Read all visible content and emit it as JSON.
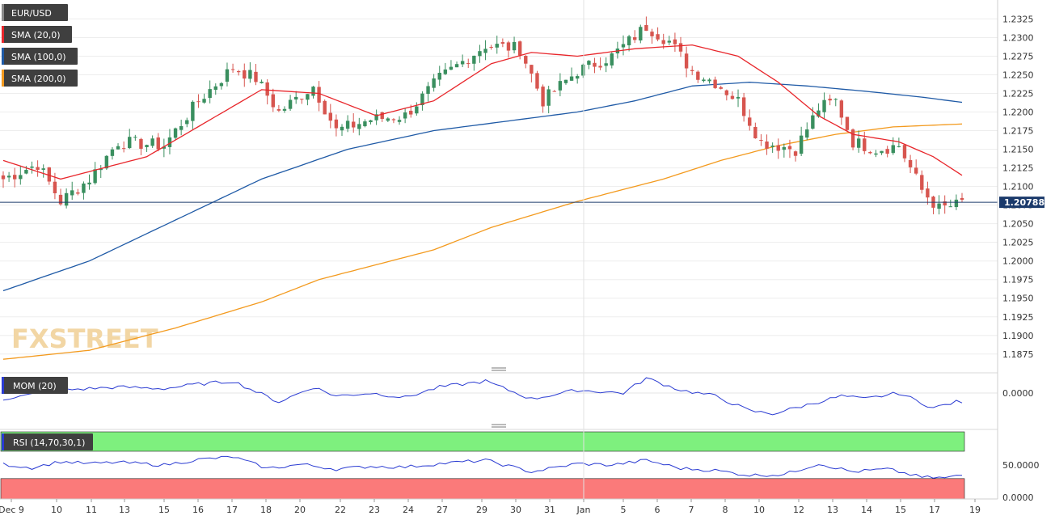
{
  "indicators": {
    "symbol": "EUR/USD",
    "sma20": "SMA (20,0)",
    "sma100": "SMA (100,0)",
    "sma200": "SMA (200,0)",
    "mom": "MOM (20)",
    "rsi": "RSI (14,70,30,1)"
  },
  "colors": {
    "candle_up": "#3a8f5f",
    "candle_down": "#d7554f",
    "sma20": "#e8262b",
    "sma100": "#1f5aa6",
    "sma200": "#f39a1e",
    "mom": "#2a3bd2",
    "rsi": "#2a3bd2",
    "rsi_overbought": "#7ef07e",
    "rsi_oversold": "#fb7a7a",
    "price_line": "#1b3a6b"
  },
  "watermark": "FXSTREET",
  "chart_data": [
    {
      "type": "candlestick",
      "title": "EUR/USD",
      "ylim": [
        1.1865,
        1.2345
      ],
      "yticks": [
        "1.2325",
        "1.2300",
        "1.2275",
        "1.2250",
        "1.2225",
        "1.2200",
        "1.2175",
        "1.2150",
        "1.2125",
        "1.2100",
        "1.2075",
        "1.2050",
        "1.2025",
        "1.2000",
        "1.1975",
        "1.1950",
        "1.1925",
        "1.1900",
        "1.1875"
      ],
      "current_price": 1.20788,
      "current_price_label": "1.20788",
      "x_labels": [
        "Dec 9",
        "10",
        "11",
        "13",
        "15",
        "16",
        "17",
        "18",
        "20",
        "22",
        "23",
        "24",
        "27",
        "29",
        "30",
        "31",
        "Jan",
        "5",
        "6",
        "7",
        "8",
        "10",
        "12",
        "13",
        "14",
        "15",
        "17",
        "19"
      ],
      "close_anchors": [
        [
          0,
          1.211
        ],
        [
          6,
          1.213
        ],
        [
          10,
          1.208
        ],
        [
          15,
          1.211
        ],
        [
          20,
          1.216
        ],
        [
          28,
          1.2155
        ],
        [
          34,
          1.2215
        ],
        [
          40,
          1.226
        ],
        [
          44,
          1.2245
        ],
        [
          48,
          1.22
        ],
        [
          54,
          1.2235
        ],
        [
          58,
          1.2175
        ],
        [
          64,
          1.219
        ],
        [
          70,
          1.2195
        ],
        [
          76,
          1.2245
        ],
        [
          84,
          1.229
        ],
        [
          90,
          1.2285
        ],
        [
          94,
          1.2215
        ],
        [
          100,
          1.2255
        ],
        [
          106,
          1.2275
        ],
        [
          112,
          1.2315
        ],
        [
          116,
          1.2295
        ],
        [
          120,
          1.2255
        ],
        [
          124,
          1.224
        ],
        [
          128,
          1.2215
        ],
        [
          132,
          1.216
        ],
        [
          138,
          1.215
        ],
        [
          142,
          1.2205
        ],
        [
          145,
          1.2215
        ],
        [
          148,
          1.216
        ],
        [
          152,
          1.215
        ],
        [
          156,
          1.2155
        ],
        [
          160,
          1.2095
        ],
        [
          163,
          1.207
        ],
        [
          166,
          1.2075
        ],
        [
          167,
          1.2079
        ]
      ],
      "series": [
        {
          "name": "SMA (20,0)",
          "points": [
            [
              0,
              1.2135
            ],
            [
              10,
              1.211
            ],
            [
              25,
              1.214
            ],
            [
              35,
              1.2185
            ],
            [
              45,
              1.223
            ],
            [
              55,
              1.2225
            ],
            [
              65,
              1.2195
            ],
            [
              75,
              1.2215
            ],
            [
              85,
              1.2265
            ],
            [
              92,
              1.228
            ],
            [
              100,
              1.2275
            ],
            [
              110,
              1.2285
            ],
            [
              120,
              1.229
            ],
            [
              128,
              1.2275
            ],
            [
              135,
              1.224
            ],
            [
              142,
              1.2195
            ],
            [
              148,
              1.217
            ],
            [
              156,
              1.216
            ],
            [
              162,
              1.214
            ],
            [
              167,
              1.2115
            ]
          ]
        },
        {
          "name": "SMA (100,0)",
          "points": [
            [
              0,
              1.196
            ],
            [
              15,
              1.2
            ],
            [
              30,
              1.2055
            ],
            [
              45,
              1.211
            ],
            [
              60,
              1.215
            ],
            [
              75,
              1.2175
            ],
            [
              90,
              1.219
            ],
            [
              100,
              1.22
            ],
            [
              110,
              1.2215
            ],
            [
              120,
              1.2235
            ],
            [
              130,
              1.224
            ],
            [
              140,
              1.2235
            ],
            [
              150,
              1.2228
            ],
            [
              160,
              1.222
            ],
            [
              167,
              1.2213
            ]
          ]
        },
        {
          "name": "SMA (200,0)",
          "points": [
            [
              0,
              1.1868
            ],
            [
              15,
              1.188
            ],
            [
              30,
              1.191
            ],
            [
              45,
              1.1945
            ],
            [
              55,
              1.1975
            ],
            [
              65,
              1.1995
            ],
            [
              75,
              1.2015
            ],
            [
              85,
              1.2045
            ],
            [
              100,
              1.208
            ],
            [
              115,
              1.211
            ],
            [
              125,
              1.2135
            ],
            [
              135,
              1.2155
            ],
            [
              145,
              1.217
            ],
            [
              155,
              1.218
            ],
            [
              167,
              1.2184
            ]
          ]
        }
      ]
    },
    {
      "type": "line",
      "title": "MOM (20)",
      "ytick": "0.0000",
      "points": [
        [
          0,
          -0.002
        ],
        [
          10,
          0.001
        ],
        [
          20,
          0.002
        ],
        [
          28,
          0.0015
        ],
        [
          34,
          0.003
        ],
        [
          40,
          0.004
        ],
        [
          48,
          -0.003
        ],
        [
          54,
          0.002
        ],
        [
          58,
          -0.001
        ],
        [
          64,
          0.0
        ],
        [
          70,
          -0.0015
        ],
        [
          76,
          0.002
        ],
        [
          84,
          0.004
        ],
        [
          92,
          -0.002
        ],
        [
          100,
          0.001
        ],
        [
          108,
          0.0
        ],
        [
          112,
          0.005
        ],
        [
          118,
          0.001
        ],
        [
          124,
          -0.001
        ],
        [
          130,
          -0.006
        ],
        [
          134,
          -0.007
        ],
        [
          140,
          -0.004
        ],
        [
          146,
          -0.001
        ],
        [
          150,
          -0.002
        ],
        [
          156,
          0.0
        ],
        [
          162,
          -0.005
        ],
        [
          166,
          -0.003
        ],
        [
          167,
          -0.003
        ]
      ]
    },
    {
      "type": "line",
      "title": "RSI (14,70,30,1)",
      "yticks": [
        "50.0000",
        "0.0000"
      ],
      "overbought": 70,
      "oversold": 30,
      "points": [
        [
          0,
          51
        ],
        [
          5,
          46
        ],
        [
          10,
          55
        ],
        [
          15,
          52
        ],
        [
          20,
          54
        ],
        [
          28,
          50
        ],
        [
          34,
          58
        ],
        [
          40,
          62
        ],
        [
          46,
          45
        ],
        [
          52,
          51
        ],
        [
          58,
          44
        ],
        [
          64,
          48
        ],
        [
          70,
          47
        ],
        [
          76,
          52
        ],
        [
          84,
          57
        ],
        [
          92,
          40
        ],
        [
          100,
          52
        ],
        [
          106,
          50
        ],
        [
          112,
          57
        ],
        [
          118,
          45
        ],
        [
          124,
          42
        ],
        [
          130,
          35
        ],
        [
          136,
          36
        ],
        [
          142,
          52
        ],
        [
          148,
          40
        ],
        [
          154,
          44
        ],
        [
          160,
          32
        ],
        [
          164,
          31
        ],
        [
          167,
          35
        ]
      ]
    }
  ]
}
